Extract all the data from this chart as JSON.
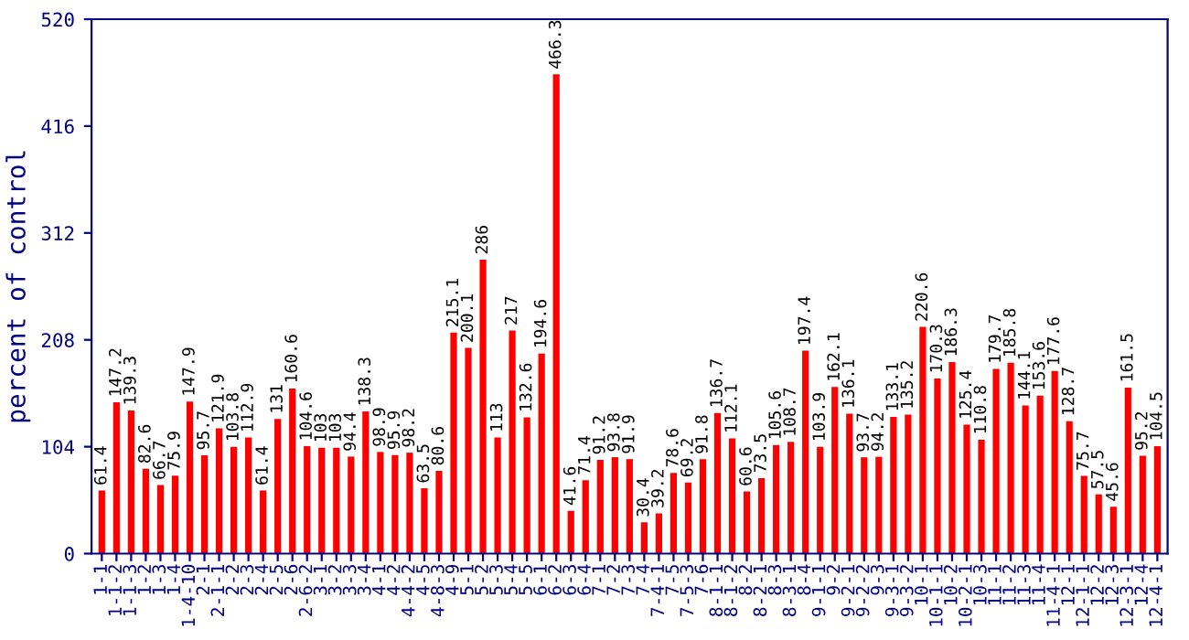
{
  "chart_data": {
    "type": "bar",
    "ylabel": "percent of control",
    "categories": [
      "1-1",
      "1-1-2",
      "1-1-3",
      "1-2",
      "1-3",
      "1-4",
      "1-4-10",
      "2-1",
      "2-1-1",
      "2-2",
      "2-3",
      "2-4",
      "2-5",
      "2-6",
      "2-6-2",
      "3-1",
      "3-2",
      "3-3",
      "3-4",
      "4-1",
      "4-2",
      "4-4-2",
      "4-5",
      "4-8-3",
      "4-9",
      "5-1",
      "5-2",
      "5-3",
      "5-4",
      "5-5",
      "6-1",
      "6-2",
      "6-3",
      "6-4",
      "7-1",
      "7-2",
      "7-3",
      "7-4",
      "7-4-1",
      "7-5",
      "7-5-3",
      "7-6",
      "8-1-1",
      "8-1-2",
      "8-2",
      "8-2-1",
      "8-3",
      "8-3-1",
      "8-4",
      "9-1-1",
      "9-2",
      "9-2-1",
      "9-2-2",
      "9-3",
      "9-3-1",
      "9-3-2",
      "10-1",
      "10-1-1",
      "10-2",
      "10-2-1",
      "10-3",
      "11-1",
      "11-2",
      "11-3",
      "11-4",
      "11-4-1",
      "12-1",
      "12-1-1",
      "12-2",
      "12-3",
      "12-3-1",
      "12-4",
      "12-4-1"
    ],
    "values": [
      61.4,
      147.2,
      139.3,
      82.6,
      66.7,
      75.9,
      147.9,
      95.7,
      121.9,
      103.8,
      112.9,
      61.4,
      131,
      160.6,
      104.6,
      103,
      103,
      94.4,
      138.3,
      98.9,
      95.9,
      98.2,
      63.5,
      80.6,
      215.1,
      200.1,
      286,
      113,
      217,
      132.6,
      194.6,
      466.3,
      41.6,
      71.4,
      91.2,
      93.8,
      91.9,
      30.4,
      39.2,
      78.6,
      69.2,
      91.8,
      136.7,
      112.1,
      60.6,
      73.5,
      105.6,
      108.7,
      197.4,
      103.9,
      162.1,
      136.1,
      93.7,
      94.2,
      133.1,
      135.2,
      220.6,
      170.3,
      186.3,
      125.4,
      110.8,
      179.7,
      185.8,
      144.1,
      153.6,
      177.6,
      128.7,
      75.7,
      57.5,
      45.6,
      161.5,
      95.2,
      104.5
    ],
    "color": "#ff0000",
    "ylim": [
      0,
      520
    ],
    "yticks": [
      0,
      104,
      208,
      312,
      416,
      520
    ],
    "data_labels": true,
    "grid": false
  }
}
